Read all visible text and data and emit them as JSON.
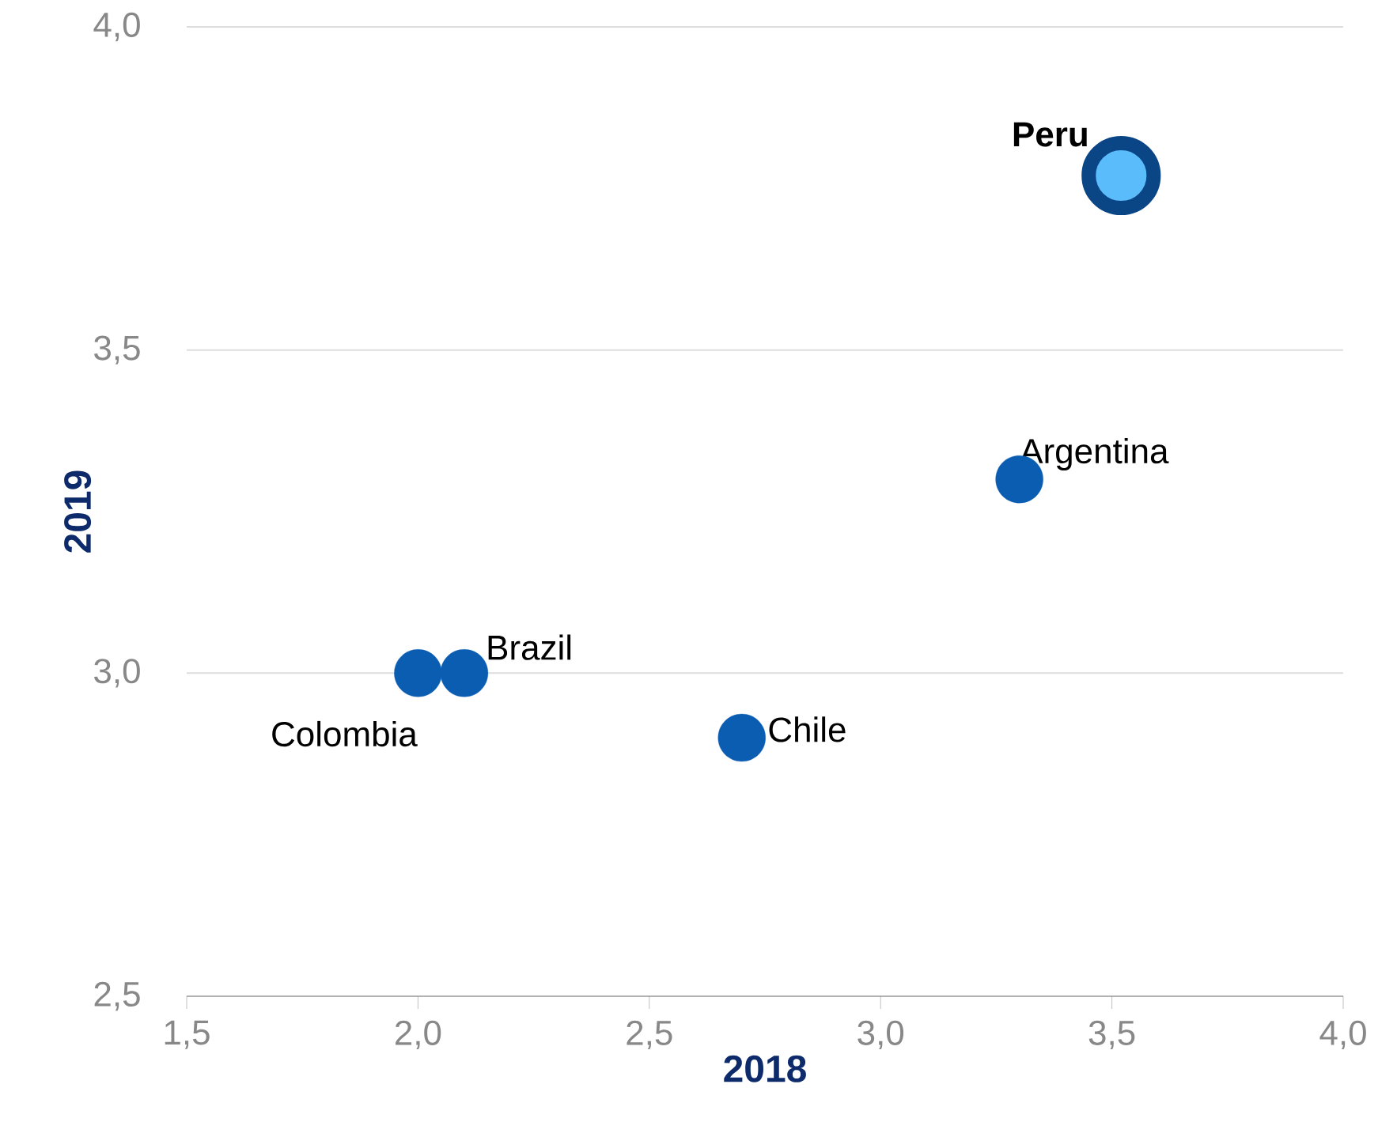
{
  "chart_data": {
    "type": "scatter",
    "xlabel": "2018",
    "ylabel": "2019",
    "series": [
      {
        "color": "#0b5db2",
        "x": [
          3.3,
          2.1,
          2.0,
          2.7
        ],
        "values": [
          3.3,
          3.0,
          3.0,
          2.9
        ]
      },
      {
        "color": "#5bbcfb",
        "x": [
          3.52
        ],
        "values": [
          3.77
        ]
      }
    ],
    "annotations": [
      {
        "text": "**Peru**",
        "x": 3.52,
        "y": 3.77
      },
      {
        "text": "Argentina",
        "x": 3.3,
        "y": 3.3
      },
      {
        "text": "Brazil",
        "x": 2.1,
        "y": 3.0
      },
      {
        "text": "Colombia",
        "x": 2.0,
        "y": 3.0
      },
      {
        "text": "Chile",
        "x": 2.7,
        "y": 2.9
      }
    ],
    "xlim": [
      1.5,
      4.0
    ],
    "ylim": [
      2.5,
      4.0
    ],
    "xticks": [
      {
        "value": 1.5,
        "label": "1,5"
      },
      {
        "value": 2.0,
        "label": "2,0"
      },
      {
        "value": 2.5,
        "label": "2,5"
      },
      {
        "value": 3.0,
        "label": "3,0"
      },
      {
        "value": 3.5,
        "label": "3,5"
      },
      {
        "value": 4.0,
        "label": "4,0"
      }
    ],
    "yticks": [
      {
        "value": 2.5,
        "label": "2,5"
      },
      {
        "value": 3.0,
        "label": "3,0"
      },
      {
        "value": 3.5,
        "label": "3,5"
      },
      {
        "value": 4.0,
        "label": "4,0"
      }
    ],
    "grid": "y"
  }
}
